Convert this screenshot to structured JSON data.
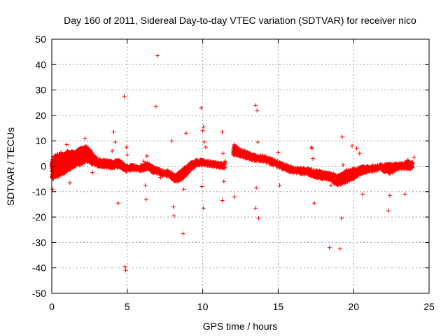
{
  "chart_data": {
    "type": "scatter",
    "title": "Day 160 of 2011, Sidereal Day-to-day VTEC variation (SDTVAR) for receiver nico",
    "xlabel": "GPS time / hours",
    "ylabel": "SDTVAR / TECUs",
    "xlim": [
      0,
      25
    ],
    "ylim": [
      -50,
      50
    ],
    "xticks": [
      0,
      5,
      10,
      15,
      20,
      25
    ],
    "yticks": [
      -50,
      -40,
      -30,
      -20,
      -10,
      0,
      10,
      20,
      30,
      40,
      50
    ],
    "grid": true,
    "marker": "+",
    "series": [
      {
        "name": "SDTVAR",
        "color": "#ff0000",
        "dense_trend": [
          [
            0.0,
            -1.5,
            4.0
          ],
          [
            0.2,
            0.0,
            4.5
          ],
          [
            0.5,
            0.5,
            4.5
          ],
          [
            0.8,
            1.0,
            4.0
          ],
          [
            1.0,
            2.0,
            4.0
          ],
          [
            1.3,
            2.5,
            3.5
          ],
          [
            1.6,
            3.0,
            3.0
          ],
          [
            2.0,
            4.0,
            3.5
          ],
          [
            2.3,
            5.0,
            3.0
          ],
          [
            2.6,
            3.5,
            2.5
          ],
          [
            3.0,
            1.5,
            1.5
          ],
          [
            3.5,
            1.0,
            1.5
          ],
          [
            4.0,
            0.5,
            1.5
          ],
          [
            4.5,
            1.0,
            1.5
          ],
          [
            4.9,
            -1.0,
            1.2
          ],
          [
            5.3,
            -0.5,
            1.0
          ],
          [
            5.8,
            -1.0,
            1.0
          ],
          [
            6.3,
            0.0,
            1.5
          ],
          [
            6.8,
            -1.5,
            1.2
          ],
          [
            7.3,
            -2.5,
            1.2
          ],
          [
            7.8,
            -3.0,
            1.2
          ],
          [
            8.2,
            -5.0,
            1.5
          ],
          [
            8.7,
            -3.0,
            2.0
          ],
          [
            9.2,
            0.0,
            1.5
          ],
          [
            9.6,
            1.5,
            1.2
          ],
          [
            10.0,
            1.5,
            1.0
          ],
          [
            10.5,
            1.0,
            1.0
          ],
          [
            11.0,
            0.5,
            1.0
          ],
          [
            11.4,
            0.0,
            1.0
          ],
          [
            12.1,
            6.5,
            2.0
          ],
          [
            12.6,
            5.0,
            1.5
          ],
          [
            13.3,
            3.5,
            1.2
          ],
          [
            14.0,
            3.0,
            1.2
          ],
          [
            14.7,
            1.5,
            1.2
          ],
          [
            15.3,
            0.0,
            1.2
          ],
          [
            16.0,
            -1.5,
            1.2
          ],
          [
            16.8,
            -2.0,
            1.2
          ],
          [
            17.5,
            -3.0,
            1.5
          ],
          [
            18.3,
            -4.0,
            1.5
          ],
          [
            19.0,
            -5.5,
            2.0
          ],
          [
            19.5,
            -4.0,
            2.5
          ],
          [
            20.0,
            -3.0,
            2.0
          ],
          [
            20.5,
            -1.5,
            1.5
          ],
          [
            21.0,
            -1.0,
            1.2
          ],
          [
            21.8,
            -0.5,
            1.2
          ],
          [
            22.4,
            -1.0,
            2.0
          ],
          [
            23.0,
            0.0,
            1.2
          ],
          [
            23.9,
            0.5,
            1.5
          ]
        ],
        "outliers": [
          [
            0.05,
            -9.0
          ],
          [
            0.6,
            5.5
          ],
          [
            1.0,
            8.5
          ],
          [
            1.2,
            -6.5
          ],
          [
            2.2,
            11.0
          ],
          [
            2.7,
            -2.5
          ],
          [
            4.0,
            6.0
          ],
          [
            4.1,
            13.5
          ],
          [
            4.2,
            9.5
          ],
          [
            4.4,
            -14.5
          ],
          [
            4.8,
            27.5
          ],
          [
            4.85,
            -39.5
          ],
          [
            4.9,
            -41.0
          ],
          [
            4.95,
            7.5
          ],
          [
            5.0,
            4.5
          ],
          [
            6.1,
            2.0
          ],
          [
            6.2,
            -7.5
          ],
          [
            6.25,
            -13.0
          ],
          [
            6.3,
            4.0
          ],
          [
            6.9,
            23.5
          ],
          [
            7.0,
            43.5
          ],
          [
            7.2,
            -4.5
          ],
          [
            7.95,
            10.0
          ],
          [
            8.05,
            -16.0
          ],
          [
            8.1,
            -19.5
          ],
          [
            8.7,
            -26.5
          ],
          [
            8.75,
            -9.0
          ],
          [
            8.9,
            13.0
          ],
          [
            9.9,
            23.0
          ],
          [
            9.95,
            -8.0
          ],
          [
            10.0,
            14.0
          ],
          [
            10.05,
            15.5
          ],
          [
            10.1,
            9.5
          ],
          [
            10.2,
            7.5
          ],
          [
            10.05,
            -16.5
          ],
          [
            11.3,
            13.5
          ],
          [
            11.35,
            5.0
          ],
          [
            11.4,
            -6.0
          ],
          [
            11.3,
            -13.5
          ],
          [
            12.1,
            -12.0
          ],
          [
            13.5,
            24.0
          ],
          [
            13.6,
            22.0
          ],
          [
            13.65,
            9.5
          ],
          [
            13.7,
            -20.5
          ],
          [
            13.5,
            -16.5
          ],
          [
            13.55,
            -8.5
          ],
          [
            15.0,
            5.5
          ],
          [
            15.1,
            -7.5
          ],
          [
            17.2,
            7.5
          ],
          [
            17.25,
            7.0
          ],
          [
            17.4,
            -14.5
          ],
          [
            17.3,
            3.0
          ],
          [
            18.4,
            -32.0
          ],
          [
            18.5,
            -7.5
          ],
          [
            19.1,
            -32.5
          ],
          [
            19.2,
            -20.5
          ],
          [
            19.25,
            11.5
          ],
          [
            19.3,
            0.5
          ],
          [
            19.9,
            8.0
          ],
          [
            20.2,
            7.0
          ],
          [
            20.4,
            5.0
          ],
          [
            20.6,
            -11.0
          ],
          [
            22.3,
            -17.5
          ],
          [
            22.4,
            -11.5
          ],
          [
            23.4,
            -11.0
          ],
          [
            23.6,
            2.5
          ],
          [
            24.0,
            3.5
          ]
        ]
      }
    ]
  }
}
